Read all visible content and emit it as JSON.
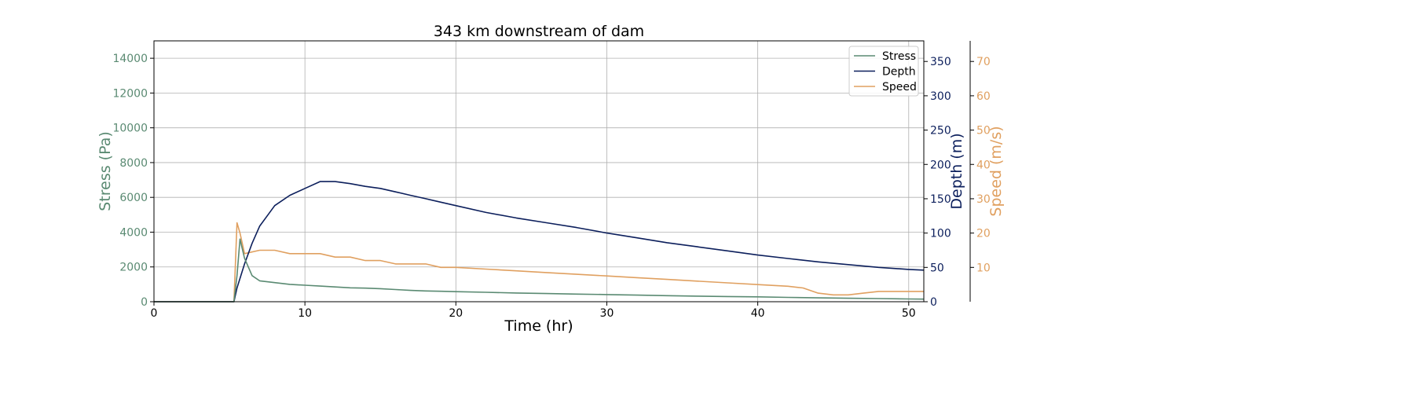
{
  "chart_data": {
    "type": "line",
    "title": "343 km downstream of dam",
    "xlabel": "Time (hr)",
    "xlim": [
      0,
      51
    ],
    "xticks": [
      0,
      10,
      20,
      30,
      40,
      50
    ],
    "grid": true,
    "legend_position": "top-right",
    "axes": {
      "stress": {
        "label": "Stress (Pa)",
        "color": "#5a8a72",
        "ylim": [
          0,
          15000
        ],
        "ticks": [
          0,
          2000,
          4000,
          6000,
          8000,
          10000,
          12000,
          14000
        ],
        "side": "left"
      },
      "depth": {
        "label": "Depth (m)",
        "color": "#0c1f5c",
        "ylim": [
          0,
          380
        ],
        "ticks": [
          0,
          50,
          100,
          150,
          200,
          250,
          300,
          350
        ],
        "side": "right"
      },
      "speed": {
        "label": "Speed (m/s)",
        "color": "#e0a060",
        "ylim": [
          0,
          76
        ],
        "ticks": [
          10,
          20,
          30,
          40,
          50,
          60,
          70
        ],
        "side": "right-outer"
      }
    },
    "series": [
      {
        "name": "Stress",
        "axis": "stress",
        "color": "#5a8a72",
        "x": [
          0,
          5.3,
          5.5,
          5.7,
          6,
          6.5,
          7,
          8,
          9,
          10,
          11,
          12,
          13,
          14,
          15,
          16,
          17,
          18,
          19,
          20,
          22,
          24,
          26,
          28,
          30,
          32,
          34,
          36,
          38,
          40,
          42,
          44,
          46,
          48,
          50,
          51
        ],
        "y": [
          0,
          0,
          1500,
          3600,
          2500,
          1500,
          1200,
          1100,
          1000,
          950,
          900,
          850,
          800,
          780,
          750,
          700,
          650,
          620,
          600,
          580,
          540,
          500,
          470,
          440,
          410,
          380,
          350,
          320,
          300,
          280,
          250,
          220,
          200,
          180,
          160,
          150
        ]
      },
      {
        "name": "Depth",
        "axis": "depth",
        "color": "#0c1f5c",
        "x": [
          0,
          5.3,
          5.5,
          6,
          6.5,
          7,
          7.5,
          8,
          9,
          10,
          11,
          12,
          13,
          14,
          15,
          16,
          17,
          18,
          19,
          20,
          22,
          24,
          26,
          28,
          30,
          32,
          34,
          36,
          38,
          40,
          42,
          44,
          46,
          48,
          50,
          51
        ],
        "y": [
          0,
          0,
          20,
          55,
          85,
          110,
          125,
          140,
          155,
          165,
          175,
          175,
          172,
          168,
          165,
          160,
          155,
          150,
          145,
          140,
          130,
          122,
          115,
          108,
          100,
          93,
          86,
          80,
          74,
          68,
          63,
          58,
          54,
          50,
          47,
          46
        ]
      },
      {
        "name": "Speed",
        "axis": "speed",
        "color": "#e0a060",
        "x": [
          0,
          5.3,
          5.5,
          5.7,
          6,
          7,
          8,
          9,
          10,
          11,
          12,
          13,
          14,
          15,
          16,
          17,
          18,
          19,
          20,
          22,
          24,
          26,
          28,
          30,
          32,
          34,
          36,
          38,
          40,
          42,
          43,
          44,
          45,
          46,
          47,
          48,
          50,
          51
        ],
        "y": [
          0,
          0,
          23,
          20,
          14,
          15,
          15,
          14,
          14,
          14,
          13,
          13,
          12,
          12,
          11,
          11,
          11,
          10,
          10,
          9.5,
          9,
          8.5,
          8,
          7.5,
          7,
          6.5,
          6,
          5.5,
          5,
          4.5,
          4,
          2.5,
          2,
          2,
          2.5,
          3,
          3,
          3
        ]
      }
    ]
  }
}
